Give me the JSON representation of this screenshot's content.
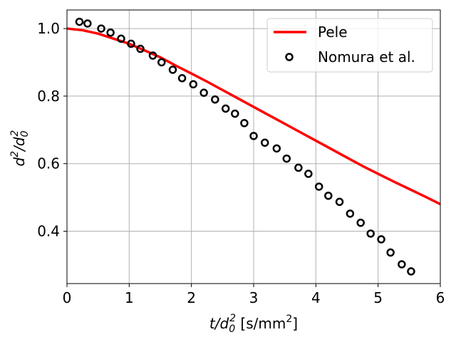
{
  "chart_data": {
    "type": "line",
    "title": "",
    "xlabel": {
      "var": "t/d",
      "sub": "0",
      "sup": "2",
      "unit_pre": " [s/mm",
      "unit_sup": "2",
      "unit_post": "]"
    },
    "ylabel": {
      "var": "d",
      "sup1": "2",
      "sep": "/d",
      "sub": "0",
      "sup2": "2"
    },
    "xlim": [
      0,
      6
    ],
    "ylim": [
      0.245,
      1.055
    ],
    "xticks": [
      0,
      1,
      2,
      3,
      4,
      5,
      6
    ],
    "xtick_labels": [
      "0",
      "1",
      "2",
      "3",
      "4",
      "5",
      "6"
    ],
    "yticks": [
      0.4,
      0.6,
      0.8,
      1.0
    ],
    "ytick_labels": [
      "0.4",
      "0.6",
      "0.8",
      "1.0"
    ],
    "grid": true,
    "legend_position": "top-right",
    "series": [
      {
        "name": "Pele",
        "kind": "line",
        "color": "#ff0000",
        "x": [
          0,
          0.25,
          0.5,
          0.75,
          1.0,
          1.25,
          1.5,
          1.75,
          2.0,
          2.25,
          2.5,
          2.75,
          3.0,
          3.25,
          3.5,
          3.75,
          4.0,
          4.25,
          4.5,
          4.75,
          5.0,
          5.25,
          5.5,
          5.75,
          6.0
        ],
        "y": [
          1.0,
          0.995,
          0.985,
          0.97,
          0.955,
          0.935,
          0.915,
          0.89,
          0.867,
          0.843,
          0.818,
          0.793,
          0.768,
          0.743,
          0.718,
          0.693,
          0.668,
          0.643,
          0.618,
          0.593,
          0.57,
          0.547,
          0.525,
          0.503,
          0.48
        ]
      },
      {
        "name": "Nomura et al.",
        "kind": "scatter",
        "color": "#000000",
        "x": [
          0.2,
          0.33,
          0.55,
          0.7,
          0.87,
          1.03,
          1.18,
          1.38,
          1.52,
          1.7,
          1.85,
          2.03,
          2.2,
          2.38,
          2.55,
          2.7,
          2.85,
          3.0,
          3.18,
          3.37,
          3.53,
          3.72,
          3.88,
          4.05,
          4.2,
          4.38,
          4.55,
          4.72,
          4.88,
          5.05,
          5.2,
          5.38,
          5.53
        ],
        "y": [
          1.02,
          1.015,
          1.0,
          0.988,
          0.97,
          0.955,
          0.94,
          0.92,
          0.9,
          0.878,
          0.853,
          0.835,
          0.81,
          0.79,
          0.763,
          0.748,
          0.72,
          0.682,
          0.662,
          0.645,
          0.615,
          0.588,
          0.57,
          0.532,
          0.505,
          0.487,
          0.452,
          0.425,
          0.393,
          0.376,
          0.337,
          0.302,
          0.281
        ]
      }
    ]
  }
}
